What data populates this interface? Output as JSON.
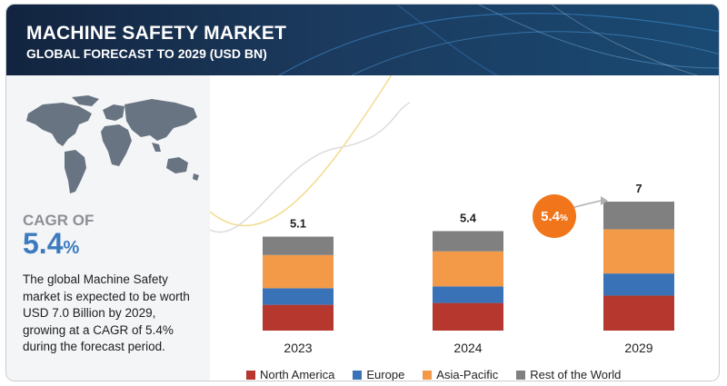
{
  "header": {
    "title": "MACHINE SAFETY MARKET",
    "subtitle": "GLOBAL FORECAST TO 2029 (USD BN)"
  },
  "sidebar": {
    "cagr_label": "CAGR OF",
    "cagr_value": "5.4",
    "cagr_unit": "%",
    "description": "The global Machine Safety market is expected to be worth USD 7.0 Billion by 2029, growing at a CAGR of 5.4% during the forecast period."
  },
  "growth_badge": {
    "value": "5.4",
    "unit": "%"
  },
  "colors": {
    "north_america": "#b5372d",
    "europe": "#3a72b8",
    "asia_pacific": "#f39a48",
    "rest_of_world": "#808080",
    "badge": "#f0751b",
    "accent": "#3d7bbf"
  },
  "chart_data": {
    "type": "bar",
    "stacked": true,
    "categories": [
      "2023",
      "2024",
      "2029"
    ],
    "totals": [
      5.1,
      5.4,
      7.0
    ],
    "series": [
      {
        "name": "North America",
        "values": [
          1.4,
          1.5,
          1.9
        ]
      },
      {
        "name": "Europe",
        "values": [
          0.9,
          0.9,
          1.2
        ]
      },
      {
        "name": "Asia-Pacific",
        "values": [
          1.8,
          1.9,
          2.4
        ]
      },
      {
        "name": "Rest of the World",
        "values": [
          1.0,
          1.1,
          1.5
        ]
      }
    ],
    "ylim": [
      0,
      7.0
    ],
    "grid": false,
    "legend_position": "bottom"
  }
}
